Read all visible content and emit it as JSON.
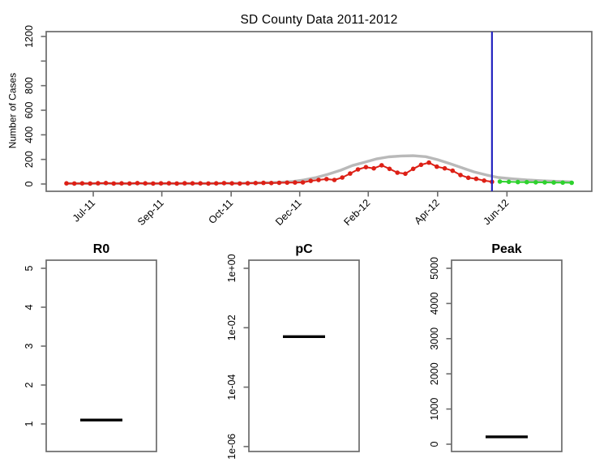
{
  "figure": {
    "background": "#ffffff",
    "description": "Epidemic curve fit and forecast with parameter boxplots"
  },
  "colors": {
    "observed_red": "#dd2016",
    "model_gray": "#b9b9b9",
    "forecast_green": "#2ed22e",
    "vline_blue": "#2525c0",
    "box_stroke": "#6b6b6b",
    "text": "#000000",
    "median_black": "#000000"
  },
  "chart_data": [
    {
      "type": "line",
      "title": "SD County Data 2011-2012",
      "xlabel": "",
      "ylabel": "Number of Cases",
      "x_unit": "week index (weekly data)",
      "grid": false,
      "legend": "none",
      "ylim": [
        0,
        1240
      ],
      "y_ticks": [
        0,
        200,
        400,
        600,
        800,
        1000,
        1200
      ],
      "y_tick_labels": [
        "0",
        "200",
        "400",
        "600",
        "800",
        "",
        "1200"
      ],
      "x_ticks": [
        {
          "label": "Jul-11",
          "week": 3.4
        },
        {
          "label": "Sep-11",
          "week": 12.1
        },
        {
          "label": "Oct-11",
          "week": 20.9
        },
        {
          "label": "Dec-11",
          "week": 29.6
        },
        {
          "label": "Feb-12",
          "week": 38.3
        },
        {
          "label": "Apr-12",
          "week": 47.1
        },
        {
          "label": "Jun-12",
          "week": 55.9
        }
      ],
      "vline": {
        "week": 54,
        "color": "#2525c0"
      },
      "series": [
        {
          "name": "observed weekly cases",
          "style": "line+markers",
          "color": "#dd2016",
          "week_start": 0,
          "week_step": 1,
          "values": [
            5,
            4,
            5,
            4,
            6,
            8,
            4,
            5,
            4,
            7,
            5,
            4,
            5,
            6,
            4,
            6,
            5,
            5,
            4,
            5,
            7,
            5,
            4,
            6,
            8,
            9,
            8,
            10,
            11,
            12,
            13,
            26,
            33,
            40,
            33,
            53,
            85,
            119,
            137,
            127,
            152,
            123,
            92,
            84,
            123,
            156,
            174,
            141,
            127,
            108,
            73,
            51,
            42,
            28,
            18
          ]
        },
        {
          "name": "model fit",
          "style": "smooth line",
          "color": "#b9b9b9",
          "points": [
            [
              0,
              4
            ],
            [
              8,
              4
            ],
            [
              16,
              4
            ],
            [
              22,
              6
            ],
            [
              25,
              9
            ],
            [
              27,
              13
            ],
            [
              28.6,
              20
            ],
            [
              30.1,
              33
            ],
            [
              31.7,
              53
            ],
            [
              33.2,
              79
            ],
            [
              34.8,
              112
            ],
            [
              36.3,
              150
            ],
            [
              37.9,
              178
            ],
            [
              39.4,
              205
            ],
            [
              40.9,
              221
            ],
            [
              42.5,
              228
            ],
            [
              44,
              230
            ],
            [
              45.6,
              222
            ],
            [
              47.1,
              198
            ],
            [
              48.7,
              165
            ],
            [
              50.2,
              132
            ],
            [
              51.7,
              99
            ],
            [
              53.3,
              73
            ],
            [
              54.8,
              53
            ],
            [
              56.4,
              43
            ],
            [
              58.4,
              33
            ],
            [
              60.5,
              26
            ],
            [
              62.5,
              21
            ],
            [
              64.1,
              17
            ]
          ]
        },
        {
          "name": "forecast cases",
          "style": "line+markers",
          "color": "#2ed22e",
          "week_start": 55,
          "week_step": 1.14,
          "values": [
            20,
            18,
            16,
            15,
            14,
            13,
            12,
            11,
            10
          ]
        }
      ]
    },
    {
      "type": "boxplot",
      "title": "R0",
      "scale": "linear",
      "ylim": [
        0.29,
        5.21
      ],
      "y_ticks": [
        1,
        2,
        3,
        4,
        5
      ],
      "y_tick_labels": [
        "1",
        "2",
        "3",
        "4",
        "5"
      ],
      "median": 1.1
    },
    {
      "type": "boxplot",
      "title": "pC",
      "scale": "log10",
      "ylim_exponents": [
        -6.17,
        0.27
      ],
      "y_tick_exponents": [
        0,
        -2,
        -4,
        -6
      ],
      "y_tick_labels": [
        "1e+00",
        "1e-02",
        "1e-04",
        "1e-06"
      ],
      "median": 0.005
    },
    {
      "type": "boxplot",
      "title": "Peak",
      "scale": "linear",
      "ylim": [
        -210,
        5230
      ],
      "y_ticks": [
        0,
        1000,
        2000,
        3000,
        4000,
        5000
      ],
      "y_tick_labels": [
        "0",
        "1000",
        "2000",
        "3000",
        "4000",
        "5000"
      ],
      "median": 210
    }
  ]
}
